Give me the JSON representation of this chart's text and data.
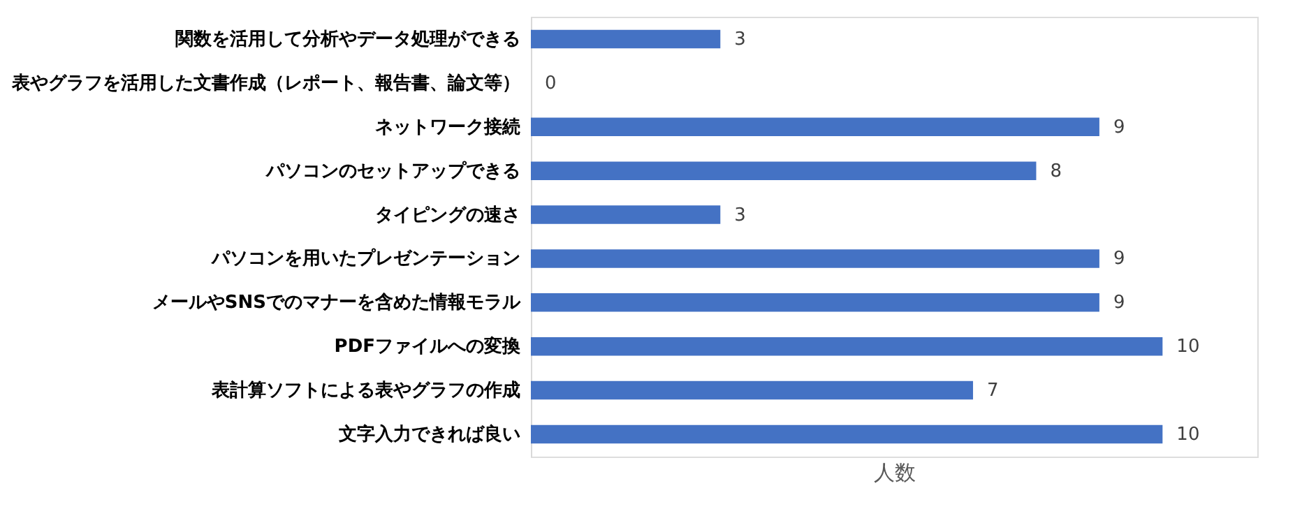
{
  "chart_data": {
    "type": "bar",
    "orientation": "horizontal",
    "xlabel": "人数",
    "categories": [
      "関数を活用して分析やデータ処理ができる",
      "表やグラフを活用した文書作成（レポート、報告書、論文等）",
      "ネットワーク接続",
      "パソコンのセットアップできる",
      "タイピングの速さ",
      "パソコンを用いたプレゼンテーション",
      "メールやSNSでのマナーを含めた情報モラル",
      "PDFファイルへの変換",
      "表計算ソフトによる表やグラフの作成",
      "文字入力できれば良い"
    ],
    "values": [
      3,
      0,
      9,
      8,
      3,
      9,
      9,
      10,
      7,
      10
    ],
    "color": "#4472c4",
    "xlim": [
      0,
      11.5
    ],
    "data_labels": true,
    "tick_labels": "y"
  }
}
